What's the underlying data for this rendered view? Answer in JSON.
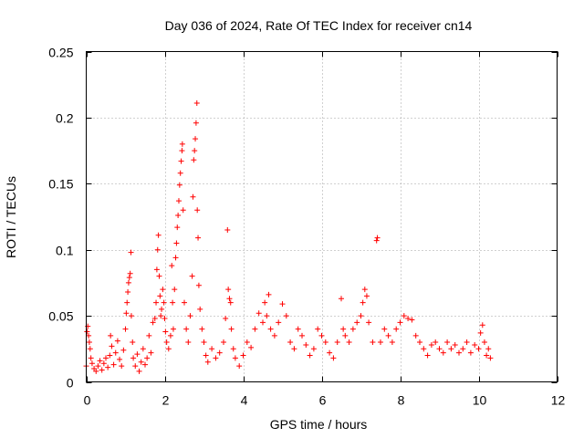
{
  "chart_data": {
    "type": "scatter",
    "title": "Day 036 of 2024, Rate Of TEC Index for receiver cn14",
    "xlabel": "GPS time / hours",
    "ylabel": "ROTI / TECUs",
    "xlim": [
      0,
      12
    ],
    "ylim": [
      0,
      0.25
    ],
    "xticks": [
      0,
      2,
      4,
      6,
      8,
      10,
      12
    ],
    "yticks": [
      0,
      0.05,
      0.1,
      0.15,
      0.2,
      0.25
    ],
    "xtick_labels": [
      "0",
      "2",
      "4",
      "6",
      "8",
      "10",
      "12"
    ],
    "ytick_labels": [
      "0",
      "0.05",
      "0.1",
      "0.15",
      "0.2",
      "0.25"
    ],
    "grid": true,
    "marker": "+",
    "color": "#ff0000",
    "series": [
      {
        "name": "cn14",
        "points": [
          [
            0.0,
            0.012
          ],
          [
            0.02,
            0.038
          ],
          [
            0.04,
            0.042
          ],
          [
            0.06,
            0.035
          ],
          [
            0.08,
            0.03
          ],
          [
            0.1,
            0.025
          ],
          [
            0.12,
            0.018
          ],
          [
            0.15,
            0.014
          ],
          [
            0.2,
            0.01
          ],
          [
            0.25,
            0.008
          ],
          [
            0.3,
            0.012
          ],
          [
            0.35,
            0.016
          ],
          [
            0.4,
            0.009
          ],
          [
            0.45,
            0.014
          ],
          [
            0.5,
            0.018
          ],
          [
            0.55,
            0.011
          ],
          [
            0.6,
            0.02
          ],
          [
            0.62,
            0.035
          ],
          [
            0.65,
            0.027
          ],
          [
            0.7,
            0.013
          ],
          [
            0.75,
            0.022
          ],
          [
            0.8,
            0.031
          ],
          [
            0.85,
            0.017
          ],
          [
            0.9,
            0.012
          ],
          [
            0.95,
            0.024
          ],
          [
            1.0,
            0.04
          ],
          [
            1.02,
            0.052
          ],
          [
            1.04,
            0.06
          ],
          [
            1.06,
            0.068
          ],
          [
            1.08,
            0.075
          ],
          [
            1.1,
            0.079
          ],
          [
            1.12,
            0.082
          ],
          [
            1.14,
            0.098
          ],
          [
            1.15,
            0.05
          ],
          [
            1.18,
            0.03
          ],
          [
            1.2,
            0.018
          ],
          [
            1.25,
            0.012
          ],
          [
            1.3,
            0.021
          ],
          [
            1.35,
            0.008
          ],
          [
            1.4,
            0.015
          ],
          [
            1.45,
            0.025
          ],
          [
            1.5,
            0.013
          ],
          [
            1.55,
            0.018
          ],
          [
            1.6,
            0.035
          ],
          [
            1.65,
            0.022
          ],
          [
            1.7,
            0.045
          ],
          [
            1.75,
            0.048
          ],
          [
            1.78,
            0.06
          ],
          [
            1.8,
            0.085
          ],
          [
            1.82,
            0.1
          ],
          [
            1.84,
            0.111
          ],
          [
            1.86,
            0.08
          ],
          [
            1.88,
            0.065
          ],
          [
            1.9,
            0.05
          ],
          [
            1.92,
            0.055
          ],
          [
            1.95,
            0.07
          ],
          [
            1.98,
            0.06
          ],
          [
            2.0,
            0.048
          ],
          [
            2.02,
            0.038
          ],
          [
            2.05,
            0.03
          ],
          [
            2.1,
            0.025
          ],
          [
            2.15,
            0.035
          ],
          [
            2.18,
            0.088
          ],
          [
            2.2,
            0.06
          ],
          [
            2.22,
            0.04
          ],
          [
            2.25,
            0.07
          ],
          [
            2.28,
            0.094
          ],
          [
            2.3,
            0.105
          ],
          [
            2.32,
            0.117
          ],
          [
            2.34,
            0.126
          ],
          [
            2.36,
            0.137
          ],
          [
            2.38,
            0.149
          ],
          [
            2.4,
            0.158
          ],
          [
            2.42,
            0.167
          ],
          [
            2.44,
            0.175
          ],
          [
            2.45,
            0.18
          ],
          [
            2.47,
            0.13
          ],
          [
            2.5,
            0.06
          ],
          [
            2.55,
            0.04
          ],
          [
            2.6,
            0.03
          ],
          [
            2.65,
            0.05
          ],
          [
            2.7,
            0.08
          ],
          [
            2.72,
            0.14
          ],
          [
            2.74,
            0.168
          ],
          [
            2.76,
            0.175
          ],
          [
            2.78,
            0.184
          ],
          [
            2.8,
            0.196
          ],
          [
            2.82,
            0.211
          ],
          [
            2.83,
            0.13
          ],
          [
            2.85,
            0.109
          ],
          [
            2.87,
            0.073
          ],
          [
            2.9,
            0.055
          ],
          [
            2.95,
            0.04
          ],
          [
            3.0,
            0.03
          ],
          [
            3.05,
            0.02
          ],
          [
            3.1,
            0.015
          ],
          [
            3.2,
            0.025
          ],
          [
            3.3,
            0.018
          ],
          [
            3.4,
            0.022
          ],
          [
            3.5,
            0.03
          ],
          [
            3.55,
            0.048
          ],
          [
            3.6,
            0.115
          ],
          [
            3.62,
            0.07
          ],
          [
            3.65,
            0.063
          ],
          [
            3.68,
            0.06
          ],
          [
            3.7,
            0.04
          ],
          [
            3.75,
            0.025
          ],
          [
            3.8,
            0.018
          ],
          [
            3.9,
            0.012
          ],
          [
            4.0,
            0.02
          ],
          [
            4.1,
            0.03
          ],
          [
            4.2,
            0.026
          ],
          [
            4.3,
            0.04
          ],
          [
            4.4,
            0.052
          ],
          [
            4.5,
            0.045
          ],
          [
            4.55,
            0.06
          ],
          [
            4.6,
            0.05
          ],
          [
            4.65,
            0.066
          ],
          [
            4.7,
            0.04
          ],
          [
            4.8,
            0.035
          ],
          [
            4.9,
            0.045
          ],
          [
            5.0,
            0.059
          ],
          [
            5.1,
            0.05
          ],
          [
            5.2,
            0.03
          ],
          [
            5.3,
            0.025
          ],
          [
            5.4,
            0.04
          ],
          [
            5.5,
            0.035
          ],
          [
            5.6,
            0.028
          ],
          [
            5.7,
            0.02
          ],
          [
            5.8,
            0.025
          ],
          [
            5.9,
            0.04
          ],
          [
            6.0,
            0.035
          ],
          [
            6.1,
            0.03
          ],
          [
            6.2,
            0.022
          ],
          [
            6.3,
            0.018
          ],
          [
            6.4,
            0.03
          ],
          [
            6.5,
            0.063
          ],
          [
            6.55,
            0.04
          ],
          [
            6.6,
            0.035
          ],
          [
            6.7,
            0.03
          ],
          [
            6.8,
            0.04
          ],
          [
            6.9,
            0.045
          ],
          [
            7.0,
            0.05
          ],
          [
            7.05,
            0.06
          ],
          [
            7.1,
            0.07
          ],
          [
            7.15,
            0.065
          ],
          [
            7.2,
            0.045
          ],
          [
            7.3,
            0.03
          ],
          [
            7.4,
            0.107
          ],
          [
            7.42,
            0.109
          ],
          [
            7.5,
            0.03
          ],
          [
            7.6,
            0.04
          ],
          [
            7.7,
            0.035
          ],
          [
            7.8,
            0.03
          ],
          [
            7.9,
            0.04
          ],
          [
            8.0,
            0.045
          ],
          [
            8.1,
            0.05
          ],
          [
            8.2,
            0.048
          ],
          [
            8.3,
            0.047
          ],
          [
            8.4,
            0.035
          ],
          [
            8.5,
            0.03
          ],
          [
            8.6,
            0.025
          ],
          [
            8.7,
            0.02
          ],
          [
            8.8,
            0.028
          ],
          [
            8.9,
            0.03
          ],
          [
            9.0,
            0.025
          ],
          [
            9.1,
            0.022
          ],
          [
            9.2,
            0.03
          ],
          [
            9.3,
            0.025
          ],
          [
            9.4,
            0.028
          ],
          [
            9.5,
            0.022
          ],
          [
            9.6,
            0.025
          ],
          [
            9.7,
            0.03
          ],
          [
            9.8,
            0.022
          ],
          [
            9.9,
            0.028
          ],
          [
            10.0,
            0.025
          ],
          [
            10.05,
            0.037
          ],
          [
            10.1,
            0.043
          ],
          [
            10.15,
            0.03
          ],
          [
            10.2,
            0.02
          ],
          [
            10.25,
            0.025
          ],
          [
            10.3,
            0.018
          ]
        ]
      }
    ]
  }
}
